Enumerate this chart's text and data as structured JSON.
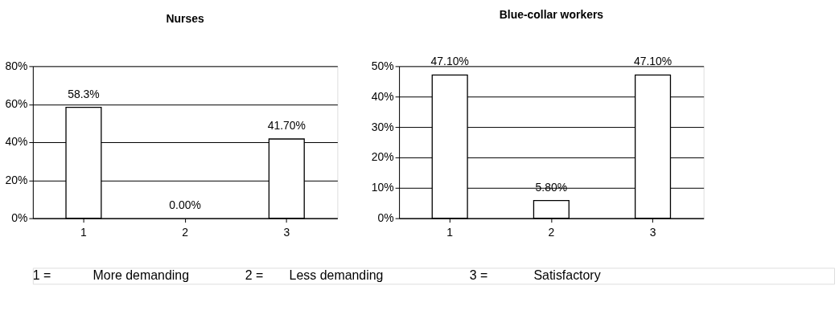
{
  "chart_data": [
    {
      "type": "bar",
      "title": "Nurses",
      "categories": [
        "1",
        "2",
        "3"
      ],
      "values": [
        58.3,
        0,
        41.7
      ],
      "color": "#ffffff",
      "value_labels": [
        "58.3%",
        "0.00%",
        "41.70%"
      ],
      "ylim": [
        0,
        80
      ],
      "yticks": [
        {
          "value": 0,
          "label": "0%"
        },
        {
          "value": 20,
          "label": "20%"
        },
        {
          "value": 40,
          "label": "40%"
        },
        {
          "value": 60,
          "label": "60%"
        },
        {
          "value": 80,
          "label": "80%"
        }
      ],
      "grid": "y",
      "annotations": [
        "1 =",
        "More demanding",
        "2 =",
        "Less demanding",
        "3 =",
        "Satisfactory"
      ]
    },
    {
      "type": "bar",
      "title": "Blue-collar workers",
      "categories": [
        "1",
        "2",
        "3"
      ],
      "values": [
        47.1,
        5.8,
        47.1
      ],
      "color": "#ffffff",
      "value_labels": [
        "47.10%",
        "5.80%",
        "47.10%"
      ],
      "ylim": [
        0,
        50
      ],
      "yticks": [
        {
          "value": 0,
          "label": "0%"
        },
        {
          "value": 10,
          "label": "10%"
        },
        {
          "value": 20,
          "label": "20%"
        },
        {
          "value": 30,
          "label": "30%"
        },
        {
          "value": 40,
          "label": "40%"
        },
        {
          "value": 50,
          "label": "50%"
        }
      ],
      "grid": "y"
    }
  ]
}
